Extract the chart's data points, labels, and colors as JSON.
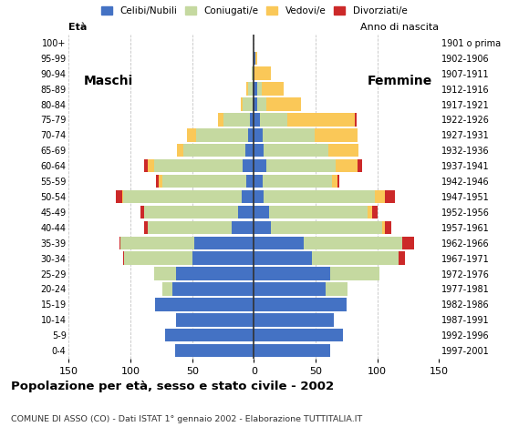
{
  "age_groups": [
    "0-4",
    "5-9",
    "10-14",
    "15-19",
    "20-24",
    "25-29",
    "30-34",
    "35-39",
    "40-44",
    "45-49",
    "50-54",
    "55-59",
    "60-64",
    "65-69",
    "70-74",
    "75-79",
    "80-84",
    "85-89",
    "90-94",
    "95-99",
    "100+"
  ],
  "birth_years": [
    "1997-2001",
    "1992-1996",
    "1987-1991",
    "1982-1986",
    "1977-1981",
    "1972-1976",
    "1967-1971",
    "1962-1966",
    "1957-1961",
    "1952-1956",
    "1947-1951",
    "1942-1946",
    "1937-1941",
    "1932-1936",
    "1927-1931",
    "1922-1926",
    "1917-1921",
    "1912-1916",
    "1907-1911",
    "1902-1906",
    "1901 o prima"
  ],
  "colors": {
    "celibe": "#4472C4",
    "coniugato": "#C5D9A0",
    "vedovo": "#FAC858",
    "divorziato": "#CC2929"
  },
  "males": {
    "celibe": [
      64,
      72,
      63,
      80,
      66,
      63,
      50,
      48,
      18,
      13,
      10,
      6,
      9,
      7,
      5,
      3,
      1,
      1,
      0,
      0,
      0
    ],
    "coniugato": [
      0,
      0,
      0,
      0,
      8,
      18,
      55,
      60,
      68,
      76,
      96,
      68,
      72,
      50,
      42,
      22,
      8,
      4,
      2,
      0,
      0
    ],
    "vedovo": [
      0,
      0,
      0,
      0,
      0,
      0,
      0,
      0,
      0,
      0,
      1,
      3,
      5,
      5,
      7,
      4,
      2,
      1,
      0,
      0,
      0
    ],
    "divorziato": [
      0,
      0,
      0,
      0,
      0,
      0,
      1,
      1,
      3,
      3,
      5,
      2,
      3,
      0,
      0,
      0,
      0,
      0,
      0,
      0,
      0
    ]
  },
  "females": {
    "celibe": [
      62,
      72,
      65,
      75,
      58,
      62,
      47,
      40,
      14,
      12,
      8,
      7,
      10,
      8,
      7,
      5,
      3,
      3,
      0,
      1,
      0
    ],
    "coniugato": [
      0,
      0,
      0,
      0,
      18,
      40,
      70,
      80,
      90,
      80,
      90,
      56,
      56,
      52,
      42,
      22,
      7,
      3,
      0,
      0,
      0
    ],
    "vedovo": [
      0,
      0,
      0,
      0,
      0,
      0,
      0,
      0,
      2,
      4,
      8,
      5,
      18,
      25,
      35,
      55,
      28,
      18,
      14,
      2,
      0
    ],
    "divorziato": [
      0,
      0,
      0,
      0,
      0,
      0,
      5,
      10,
      5,
      4,
      8,
      1,
      4,
      0,
      0,
      1,
      0,
      0,
      0,
      0,
      0
    ]
  },
  "xlim": 150,
  "title": "Popolazione per età, sesso e stato civile - 2002",
  "subtitle": "COMUNE DI ASSO (CO) - Dati ISTAT 1° gennaio 2002 - Elaborazione TUTTITALIA.IT",
  "label_eta": "Età",
  "label_maschi": "Maschi",
  "label_femmine": "Femmine",
  "label_anno": "Anno di nascita",
  "legend_labels": [
    "Celibi/Nubili",
    "Coniugati/e",
    "Vedovi/e",
    "Divorziati/e"
  ],
  "bg_color": "#FFFFFF",
  "grid_color": "#AAAAAA"
}
